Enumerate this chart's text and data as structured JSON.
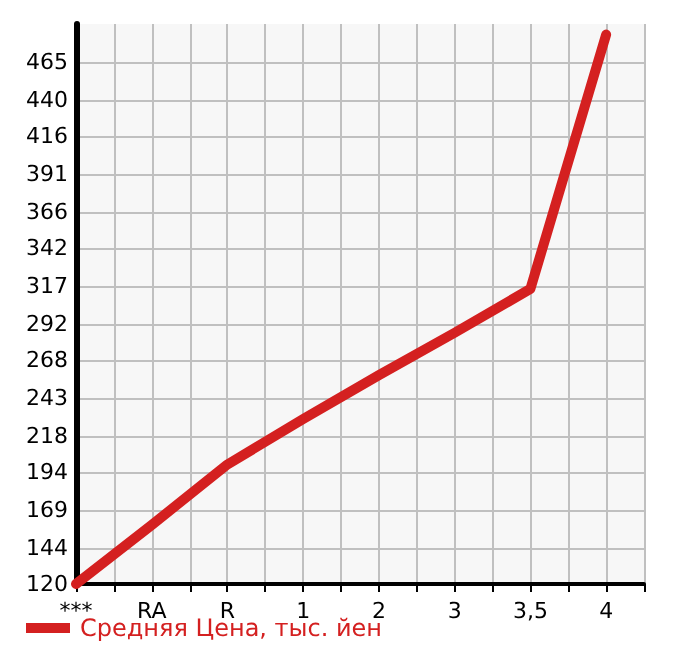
{
  "chart_data": {
    "type": "line",
    "categories": [
      "***",
      "RA",
      "R",
      "1",
      "2",
      "3",
      "3,5",
      "4"
    ],
    "series": [
      {
        "name": "Средняя Цена, тыс. йен",
        "color": "#d42020",
        "values": [
          120,
          159,
          199,
          229,
          258,
          286,
          315,
          483
        ]
      }
    ],
    "ylim": [
      120,
      490
    ],
    "yticks": [
      120,
      144,
      169,
      194,
      218,
      243,
      268,
      292,
      317,
      342,
      366,
      391,
      416,
      440,
      465
    ],
    "grid": true,
    "legend": "bottom left",
    "marker": "none",
    "line_style": "solid"
  }
}
